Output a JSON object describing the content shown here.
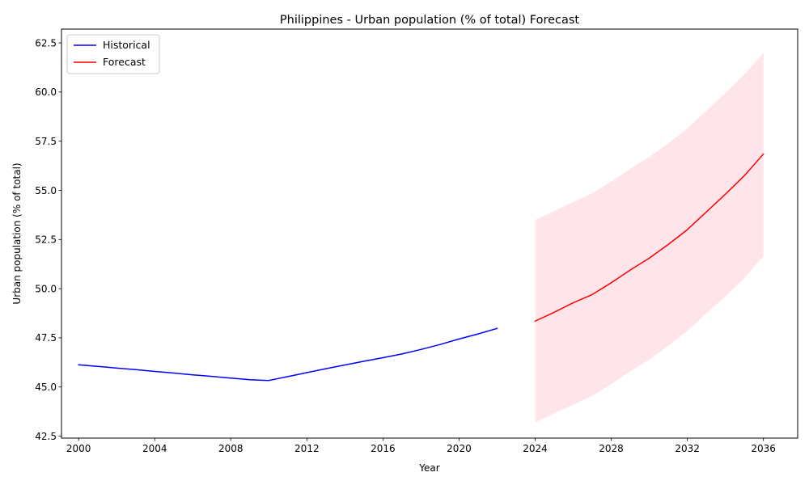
{
  "chart_data": {
    "type": "line",
    "title": "Philippines - Urban population (% of total) Forecast",
    "xlabel": "Year",
    "ylabel": "Urban population (% of total)",
    "xlim": [
      1999.1,
      2037.8
    ],
    "ylim": [
      42.4,
      63.2
    ],
    "x_ticks": [
      2000,
      2004,
      2008,
      2012,
      2016,
      2020,
      2024,
      2028,
      2032,
      2036
    ],
    "y_ticks": [
      42.5,
      45.0,
      47.5,
      50.0,
      52.5,
      55.0,
      57.5,
      60.0,
      62.5
    ],
    "x_tick_labels": [
      "2000",
      "2004",
      "2008",
      "2012",
      "2016",
      "2020",
      "2024",
      "2028",
      "2032",
      "2036"
    ],
    "y_tick_labels": [
      "42.5",
      "45.0",
      "47.5",
      "50.0",
      "52.5",
      "55.0",
      "57.5",
      "60.0",
      "62.5"
    ],
    "grid": false,
    "legend_position": "top-left",
    "series": [
      {
        "name": "Historical",
        "color": "#0000ff",
        "x": [
          2000,
          2001,
          2002,
          2003,
          2004,
          2005,
          2006,
          2007,
          2008,
          2009,
          2010,
          2011,
          2012,
          2013,
          2014,
          2015,
          2016,
          2017,
          2018,
          2019,
          2020,
          2021,
          2022
        ],
        "y": [
          46.13,
          46.05,
          45.96,
          45.88,
          45.79,
          45.71,
          45.62,
          45.54,
          45.45,
          45.37,
          45.33,
          45.53,
          45.73,
          45.93,
          46.12,
          46.31,
          46.49,
          46.68,
          46.91,
          47.16,
          47.44,
          47.7,
          47.98
        ]
      },
      {
        "name": "Forecast",
        "color": "#ff0000",
        "x": [
          2024,
          2025,
          2026,
          2027,
          2028,
          2029,
          2030,
          2031,
          2032,
          2033,
          2034,
          2035,
          2036
        ],
        "y": [
          48.35,
          48.8,
          49.28,
          49.7,
          50.3,
          50.95,
          51.55,
          52.25,
          53.0,
          53.9,
          54.8,
          55.75,
          56.85
        ]
      }
    ],
    "confidence_band": {
      "series": "Forecast",
      "color": "#ffe4e9",
      "x": [
        2024,
        2025,
        2026,
        2027,
        2028,
        2029,
        2030,
        2031,
        2032,
        2033,
        2034,
        2035,
        2036
      ],
      "lower": [
        43.2,
        43.65,
        44.1,
        44.55,
        45.15,
        45.8,
        46.4,
        47.1,
        47.85,
        48.75,
        49.6,
        50.55,
        51.65
      ],
      "upper": [
        53.5,
        53.95,
        54.4,
        54.85,
        55.45,
        56.1,
        56.7,
        57.4,
        58.15,
        59.05,
        59.95,
        60.9,
        62.0
      ]
    }
  }
}
